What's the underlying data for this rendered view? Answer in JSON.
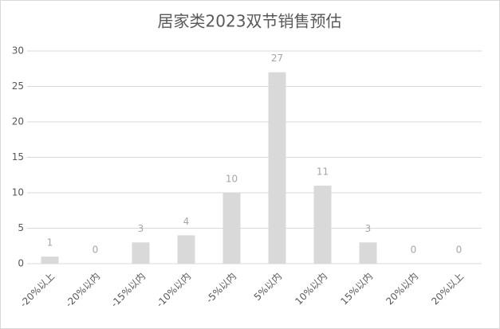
{
  "chart_data": {
    "type": "bar",
    "title": "居家类2023双节销售预估",
    "categories": [
      "-20%以上",
      "-20%以内",
      "-15%以内",
      "-10%以内",
      "-5%以内",
      "5%以内",
      "10%以内",
      "15%以内",
      "20%以内",
      "20%以上"
    ],
    "values": [
      1,
      0,
      3,
      4,
      10,
      27,
      11,
      3,
      0,
      0
    ],
    "color": "#d9d9d9",
    "ylim": [
      0,
      30
    ],
    "yticks": [
      0,
      5,
      10,
      15,
      20,
      25,
      30
    ],
    "grid": true
  }
}
